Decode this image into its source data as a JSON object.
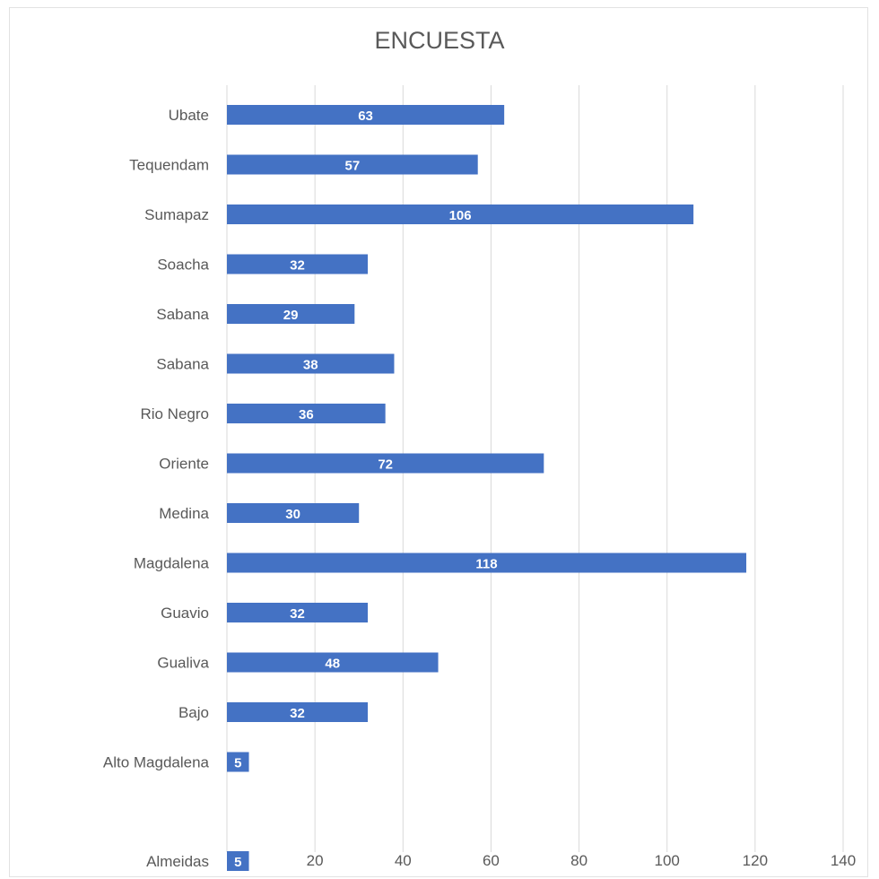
{
  "chart_data": {
    "type": "bar",
    "orientation": "horizontal",
    "title": "ENCUESTA",
    "categories": [
      "Ubate",
      "Tequendam",
      "Sumapaz",
      "Soacha",
      "Sabana",
      "Sabana",
      "Rio Negro",
      "Oriente",
      "Medina",
      "Magdalena",
      "Guavio",
      "Gualiva",
      "Bajo",
      "Alto Magdalena",
      "Almeidas"
    ],
    "values": [
      63,
      57,
      106,
      32,
      29,
      38,
      36,
      72,
      30,
      118,
      32,
      48,
      32,
      5,
      5
    ],
    "xlim": [
      0,
      140
    ],
    "xticks": [
      20,
      40,
      60,
      80,
      100,
      120,
      140
    ],
    "grid": true,
    "bar_color": "#4472c4",
    "data_labels": true
  }
}
